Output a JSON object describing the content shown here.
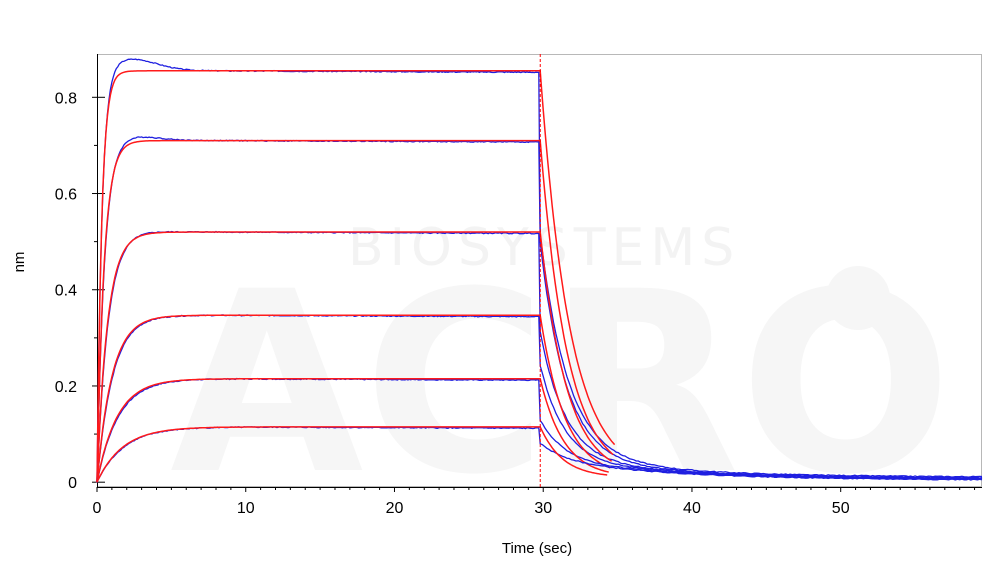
{
  "chart_data": {
    "type": "line",
    "title": "",
    "xlabel": "Time (sec)",
    "ylabel": "nm",
    "xlim": [
      0,
      59.5
    ],
    "ylim": [
      -0.01,
      0.89
    ],
    "x_ticks": [
      0,
      10,
      20,
      30,
      40,
      50
    ],
    "y_ticks": [
      0,
      0.2,
      0.4,
      0.6,
      0.8
    ],
    "grid": false,
    "legend": "none",
    "watermark": {
      "logo_text": "ACRO",
      "caption": "BIOSYSTEMS"
    },
    "colors": {
      "measured": "#1f1fe0",
      "fit": "#ff1a1a",
      "association_end_marker": "#ff0000"
    },
    "association_end_time": 29.8,
    "series": [
      {
        "plateau": 0.855,
        "measured_peak": 0.88,
        "k_on": 3.0,
        "k_off": 0.55,
        "measured_tail": 0.01,
        "fit_end_x": 34.9
      },
      {
        "plateau": 0.71,
        "measured_peak": 0.72,
        "k_on": 2.0,
        "k_off": 0.6,
        "measured_tail": 0.008,
        "fit_end_x": 34.8
      },
      {
        "plateau": 0.52,
        "measured_peak": 0.523,
        "k_on": 1.35,
        "k_off": 0.62,
        "measured_tail": 0.007,
        "fit_end_x": 34.7
      },
      {
        "plateau": 0.347,
        "measured_peak": 0.348,
        "k_on": 0.95,
        "k_off": 0.66,
        "measured_tail": 0.006,
        "fit_end_x": 34.6
      },
      {
        "plateau": 0.215,
        "measured_peak": 0.215,
        "k_on": 0.7,
        "k_off": 0.7,
        "measured_tail": 0.005,
        "fit_end_x": 34.5
      },
      {
        "plateau": 0.115,
        "measured_peak": 0.116,
        "k_on": 0.55,
        "k_off": 0.75,
        "measured_tail": 0.004,
        "fit_end_x": 34.4
      }
    ]
  }
}
